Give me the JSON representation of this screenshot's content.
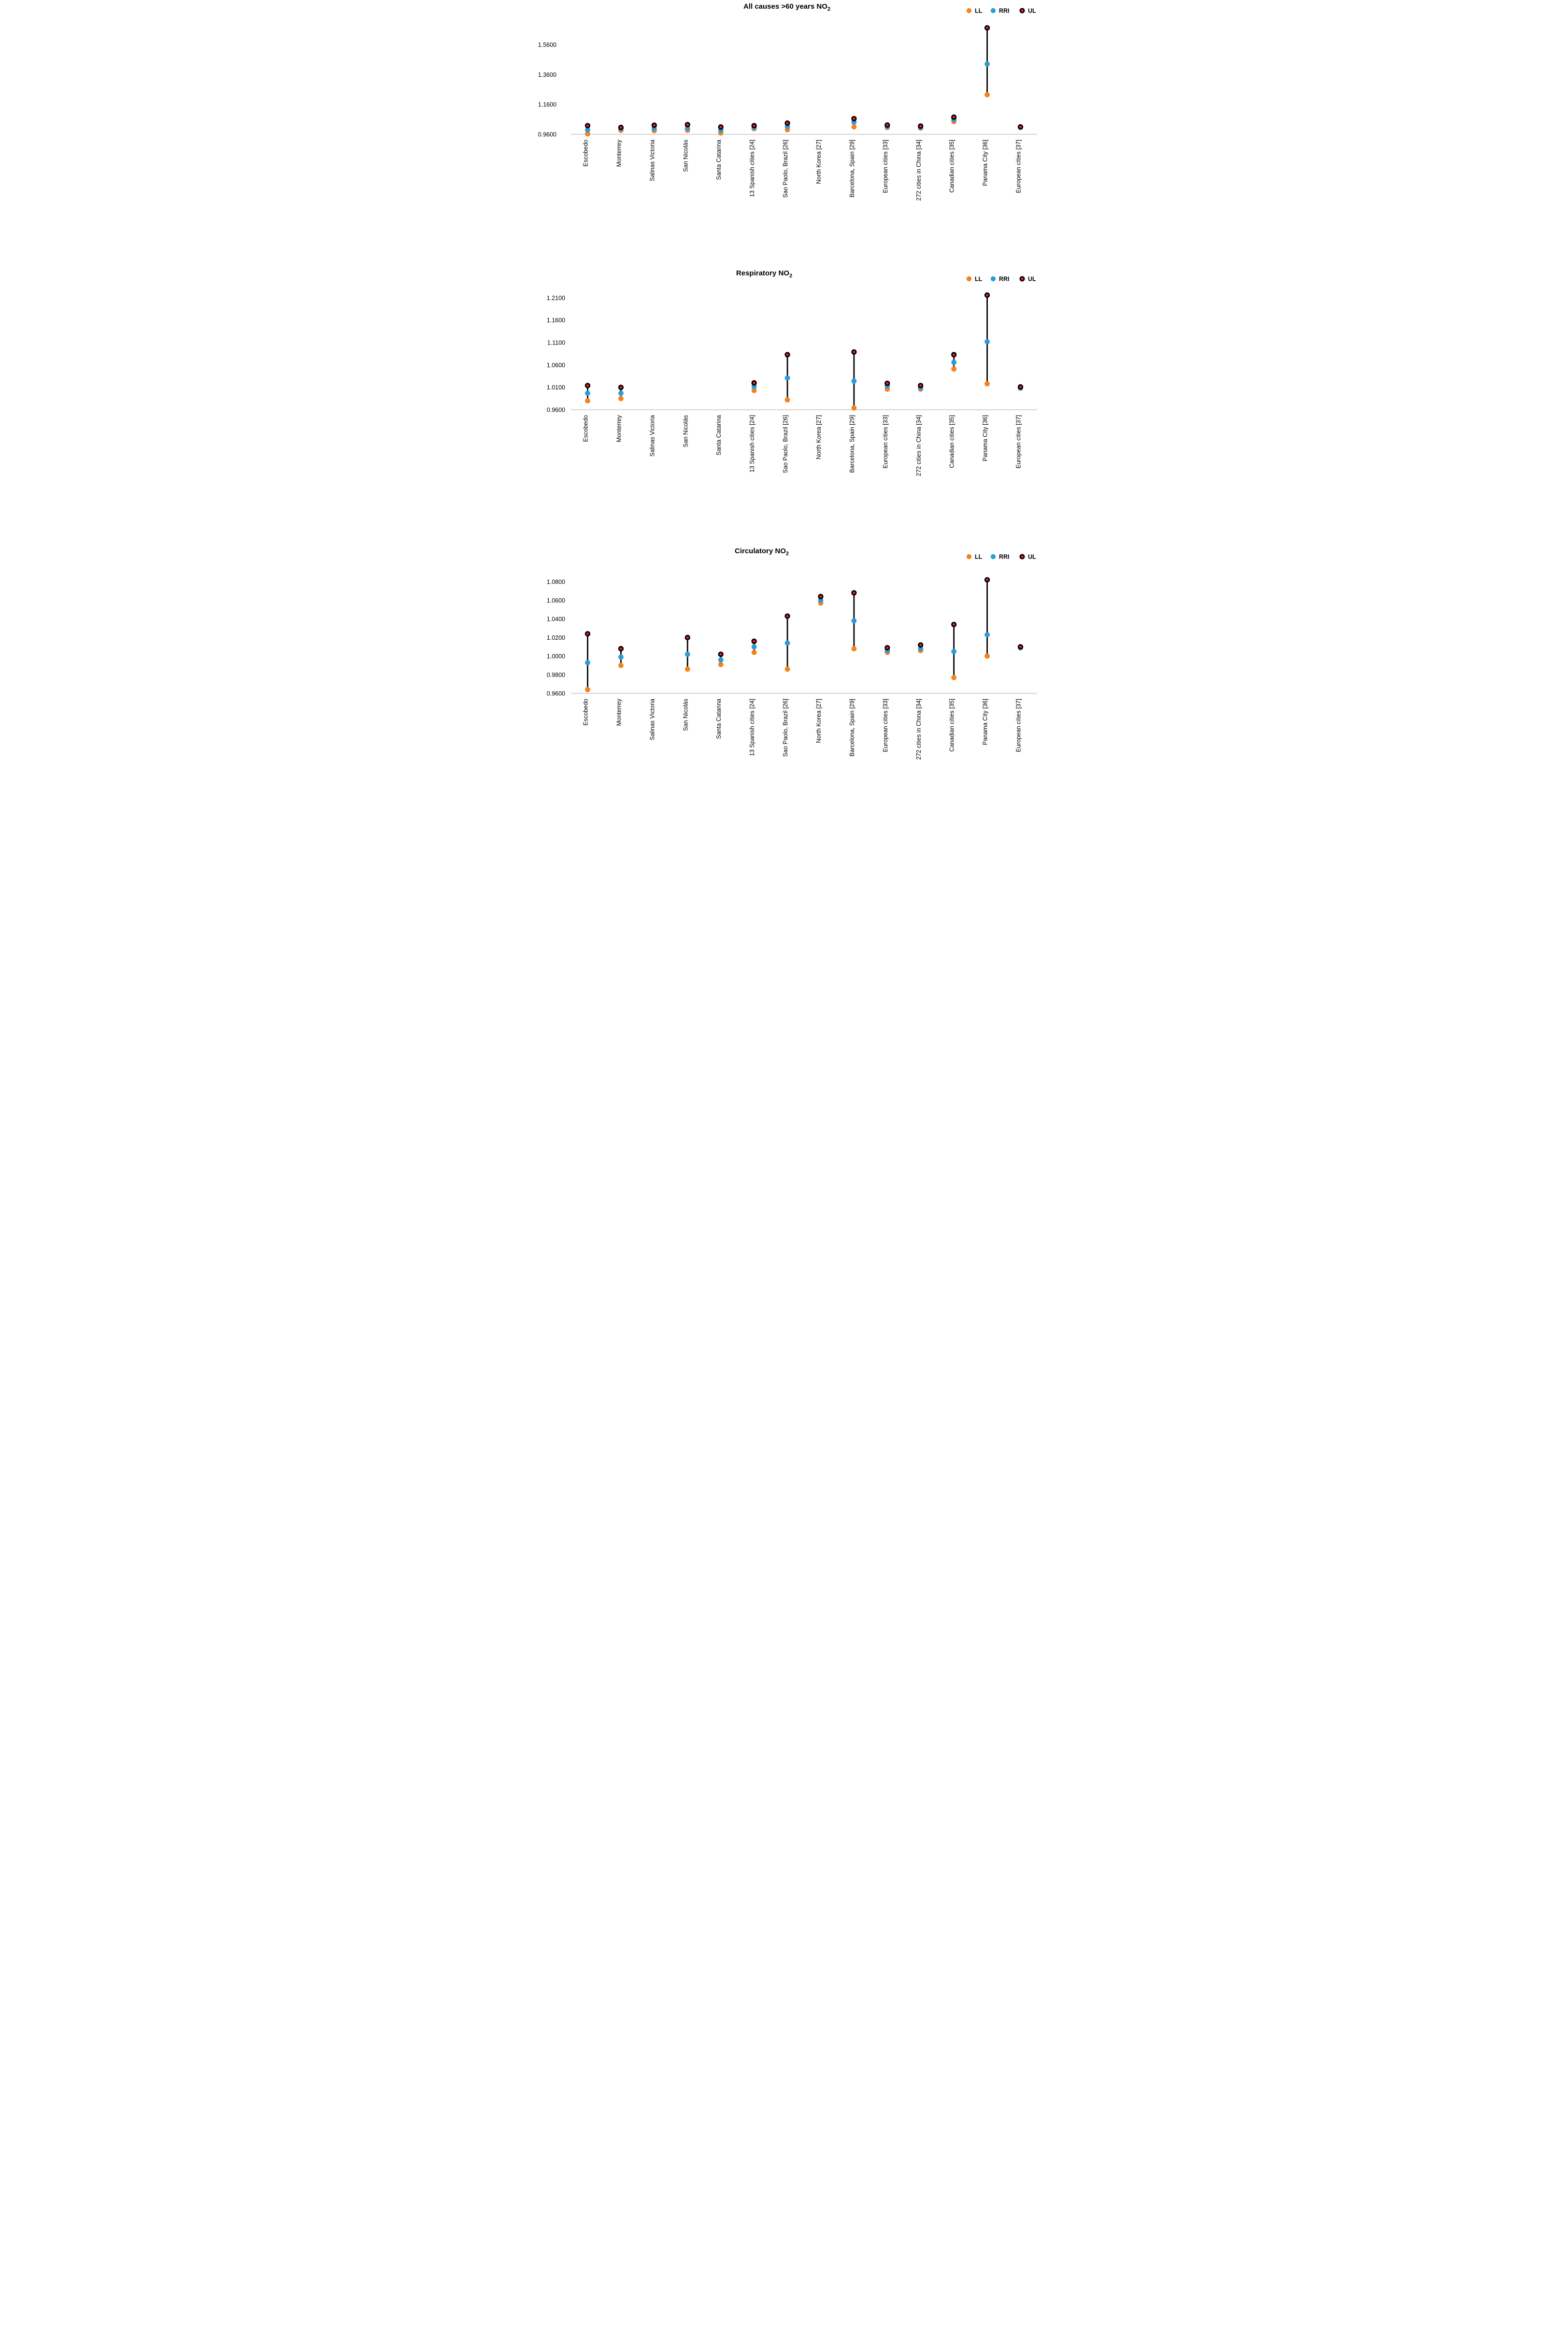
{
  "page": {
    "background": "#ffffff"
  },
  "legend": {
    "items": [
      {
        "label": "LL",
        "color": "#F6821F",
        "outline": "none"
      },
      {
        "label": "RRI",
        "color": "#2C9CD9",
        "outline": "none"
      },
      {
        "label": "UL",
        "color": "#ED1C24",
        "outline": "#000000"
      }
    ]
  },
  "colors": {
    "ll": "#F6821F",
    "rri": "#2C9CD9",
    "ul": "#ED1C24",
    "ul_ring": "#000000",
    "connector": "#000000",
    "axis_line": "#D9D9D9",
    "text": "#000000"
  },
  "categories": [
    "Escobedo",
    "Monterrey",
    "Salinas Victoria",
    "San Nicolás",
    "Santa Catarina",
    "13 Spanish cities [24]",
    "Sao Paolo, Brazil [26]",
    "North Korea [27]",
    "Barcelona, Spain [29]",
    "European cities [33]",
    "272 cities in China [34]",
    "Canadian cities [35]",
    "Panama City [36]",
    "European cities [37]"
  ],
  "chart_data": [
    {
      "type": "scatter",
      "title": {
        "text": "All causes >60 years NO",
        "sub": "2"
      },
      "xlabel": "",
      "ylabel": "",
      "grid": false,
      "legend_position": "top-right",
      "axis_baseline_value": 0.96,
      "ylim": [
        0.93,
        1.8
      ],
      "yticks": [
        {
          "label": "0.9600",
          "value": 0.96
        },
        {
          "label": "1.1600",
          "value": 1.16
        },
        {
          "label": "1.3600",
          "value": 1.36
        },
        {
          "label": "1.5600",
          "value": 1.56
        }
      ],
      "series_names": [
        "LL",
        "RRI",
        "UL"
      ],
      "points": [
        {
          "category": "Escobedo",
          "ll": 0.963,
          "rri": 0.989,
          "ul": 1.018
        },
        {
          "category": "Monterrey",
          "ll": 0.987,
          "rri": 0.997,
          "ul": 1.006
        },
        {
          "category": "Salinas Victoria",
          "ll": 0.984,
          "rri": 0.999,
          "ul": 1.021
        },
        {
          "category": "San Nicolás",
          "ll": 0.987,
          "rri": 1.001,
          "ul": 1.025
        },
        {
          "category": "Santa Catarina",
          "ll": 0.969,
          "rri": 0.988,
          "ul": 1.009
        },
        {
          "category": "13 Spanish cities [24]",
          "ll": 0.998,
          "rri": 1.005,
          "ul": 1.018
        },
        {
          "category": "Sao Paolo, Brazil [26]",
          "ll": 0.991,
          "rri": 1.012,
          "ul": 1.035
        },
        {
          "category": "North Korea [27]",
          "ll": null,
          "rri": null,
          "ul": null
        },
        {
          "category": "Barcelona, Spain [29]",
          "ll": 1.01,
          "rri": 1.042,
          "ul": 1.065
        },
        {
          "category": "European cities [33]",
          "ll": 1.006,
          "rri": 1.012,
          "ul": 1.022
        },
        {
          "category": "272 cities in China [34]",
          "ll": 1.002,
          "rri": 1.007,
          "ul": 1.015
        },
        {
          "category": "Canadian cities [35]",
          "ll": 1.045,
          "rri": 1.058,
          "ul": 1.075
        },
        {
          "category": "Panama City [36]",
          "ll": 1.225,
          "rri": 1.431,
          "ul": 1.673
        },
        {
          "category": "European cities [37]",
          "ll": 1.006,
          "rri": 1.008,
          "ul": 1.01
        }
      ]
    },
    {
      "type": "scatter",
      "title": {
        "text": "Respiratory NO",
        "sub": "2"
      },
      "xlabel": "",
      "ylabel": "",
      "grid": false,
      "legend_position": "top-right",
      "axis_baseline_value": 0.96,
      "ylim": [
        0.945,
        1.235
      ],
      "yticks": [
        {
          "label": "0.9600",
          "value": 0.96
        },
        {
          "label": "1.0100",
          "value": 1.01
        },
        {
          "label": "1.0600",
          "value": 1.06
        },
        {
          "label": "1.1100",
          "value": 1.11
        },
        {
          "label": "1.1600",
          "value": 1.16
        },
        {
          "label": "1.2100",
          "value": 1.21
        }
      ],
      "series_names": [
        "LL",
        "RRI",
        "UL"
      ],
      "points": [
        {
          "category": "Escobedo",
          "ll": 0.98,
          "rri": 0.997,
          "ul": 1.014
        },
        {
          "category": "Monterrey",
          "ll": 0.985,
          "rri": 0.997,
          "ul": 1.01
        },
        {
          "category": "Salinas Victoria",
          "ll": null,
          "rri": null,
          "ul": null
        },
        {
          "category": "San Nicolás",
          "ll": null,
          "rri": null,
          "ul": null
        },
        {
          "category": "Santa Catarina",
          "ll": null,
          "rri": null,
          "ul": null
        },
        {
          "category": "13 Spanish cities [24]",
          "ll": 1.003,
          "rri": 1.012,
          "ul": 1.02
        },
        {
          "category": "Sao Paolo, Brazil [26]",
          "ll": 0.982,
          "rri": 1.031,
          "ul": 1.083
        },
        {
          "category": "North Korea [27]",
          "ll": null,
          "rri": null,
          "ul": null
        },
        {
          "category": "Barcelona, Spain [29]",
          "ll": 0.964,
          "rri": 1.024,
          "ul": 1.089
        },
        {
          "category": "European cities [33]",
          "ll": 1.006,
          "rri": 1.013,
          "ul": 1.019
        },
        {
          "category": "272 cities in China [34]",
          "ll": 1.006,
          "rri": 1.009,
          "ul": 1.014
        },
        {
          "category": "Canadian cities [35]",
          "ll": 1.051,
          "rri": 1.066,
          "ul": 1.083
        },
        {
          "category": "Panama City [36]",
          "ll": 1.018,
          "rri": 1.112,
          "ul": 1.216
        },
        {
          "category": "European cities [37]",
          "ll": 1.008,
          "rri": 1.009,
          "ul": 1.011
        }
      ]
    },
    {
      "type": "scatter",
      "title": {
        "text": "Circulatory NO",
        "sub": "2"
      },
      "xlabel": "",
      "ylabel": "",
      "grid": false,
      "legend_position": "top-right",
      "axis_baseline_value": 0.96,
      "ylim": [
        0.951,
        1.085
      ],
      "yticks": [
        {
          "label": "0.9600",
          "value": 0.96
        },
        {
          "label": "0.9800",
          "value": 0.98
        },
        {
          "label": "1.0000",
          "value": 1.0
        },
        {
          "label": "1.0200",
          "value": 1.02
        },
        {
          "label": "1.0400",
          "value": 1.04
        },
        {
          "label": "1.0600",
          "value": 1.06
        },
        {
          "label": "1.0800",
          "value": 1.08
        }
      ],
      "series_names": [
        "LL",
        "RRI",
        "UL"
      ],
      "points": [
        {
          "category": "Escobedo",
          "ll": 0.964,
          "rri": 0.993,
          "ul": 1.024
        },
        {
          "category": "Monterrey",
          "ll": 0.99,
          "rri": 0.999,
          "ul": 1.008
        },
        {
          "category": "Salinas Victoria",
          "ll": null,
          "rri": null,
          "ul": null
        },
        {
          "category": "San Nicolás",
          "ll": 0.986,
          "rri": 1.002,
          "ul": 1.02
        },
        {
          "category": "Santa Catarina",
          "ll": 0.991,
          "rri": 0.996,
          "ul": 1.002
        },
        {
          "category": "13 Spanish cities [24]",
          "ll": 1.004,
          "rri": 1.01,
          "ul": 1.016
        },
        {
          "category": "Sao Paolo, Brazil [26]",
          "ll": 0.986,
          "rri": 1.014,
          "ul": 1.043
        },
        {
          "category": "North Korea [27]",
          "ll": 1.057,
          "rri": 1.06,
          "ul": 1.064
        },
        {
          "category": "Barcelona, Spain [29]",
          "ll": 1.008,
          "rri": 1.038,
          "ul": 1.068
        },
        {
          "category": "European cities [33]",
          "ll": 1.004,
          "rri": 1.006,
          "ul": 1.009
        },
        {
          "category": "272 cities in China [34]",
          "ll": 1.006,
          "rri": 1.008,
          "ul": 1.012
        },
        {
          "category": "Canadian cities [35]",
          "ll": 0.977,
          "rri": 1.005,
          "ul": 1.034
        },
        {
          "category": "Panama City [36]",
          "ll": 1.0,
          "rri": 1.023,
          "ul": 1.082
        },
        {
          "category": "European cities [37]",
          "ll": 1.009,
          "rri": 1.009,
          "ul": 1.01
        }
      ]
    }
  ]
}
